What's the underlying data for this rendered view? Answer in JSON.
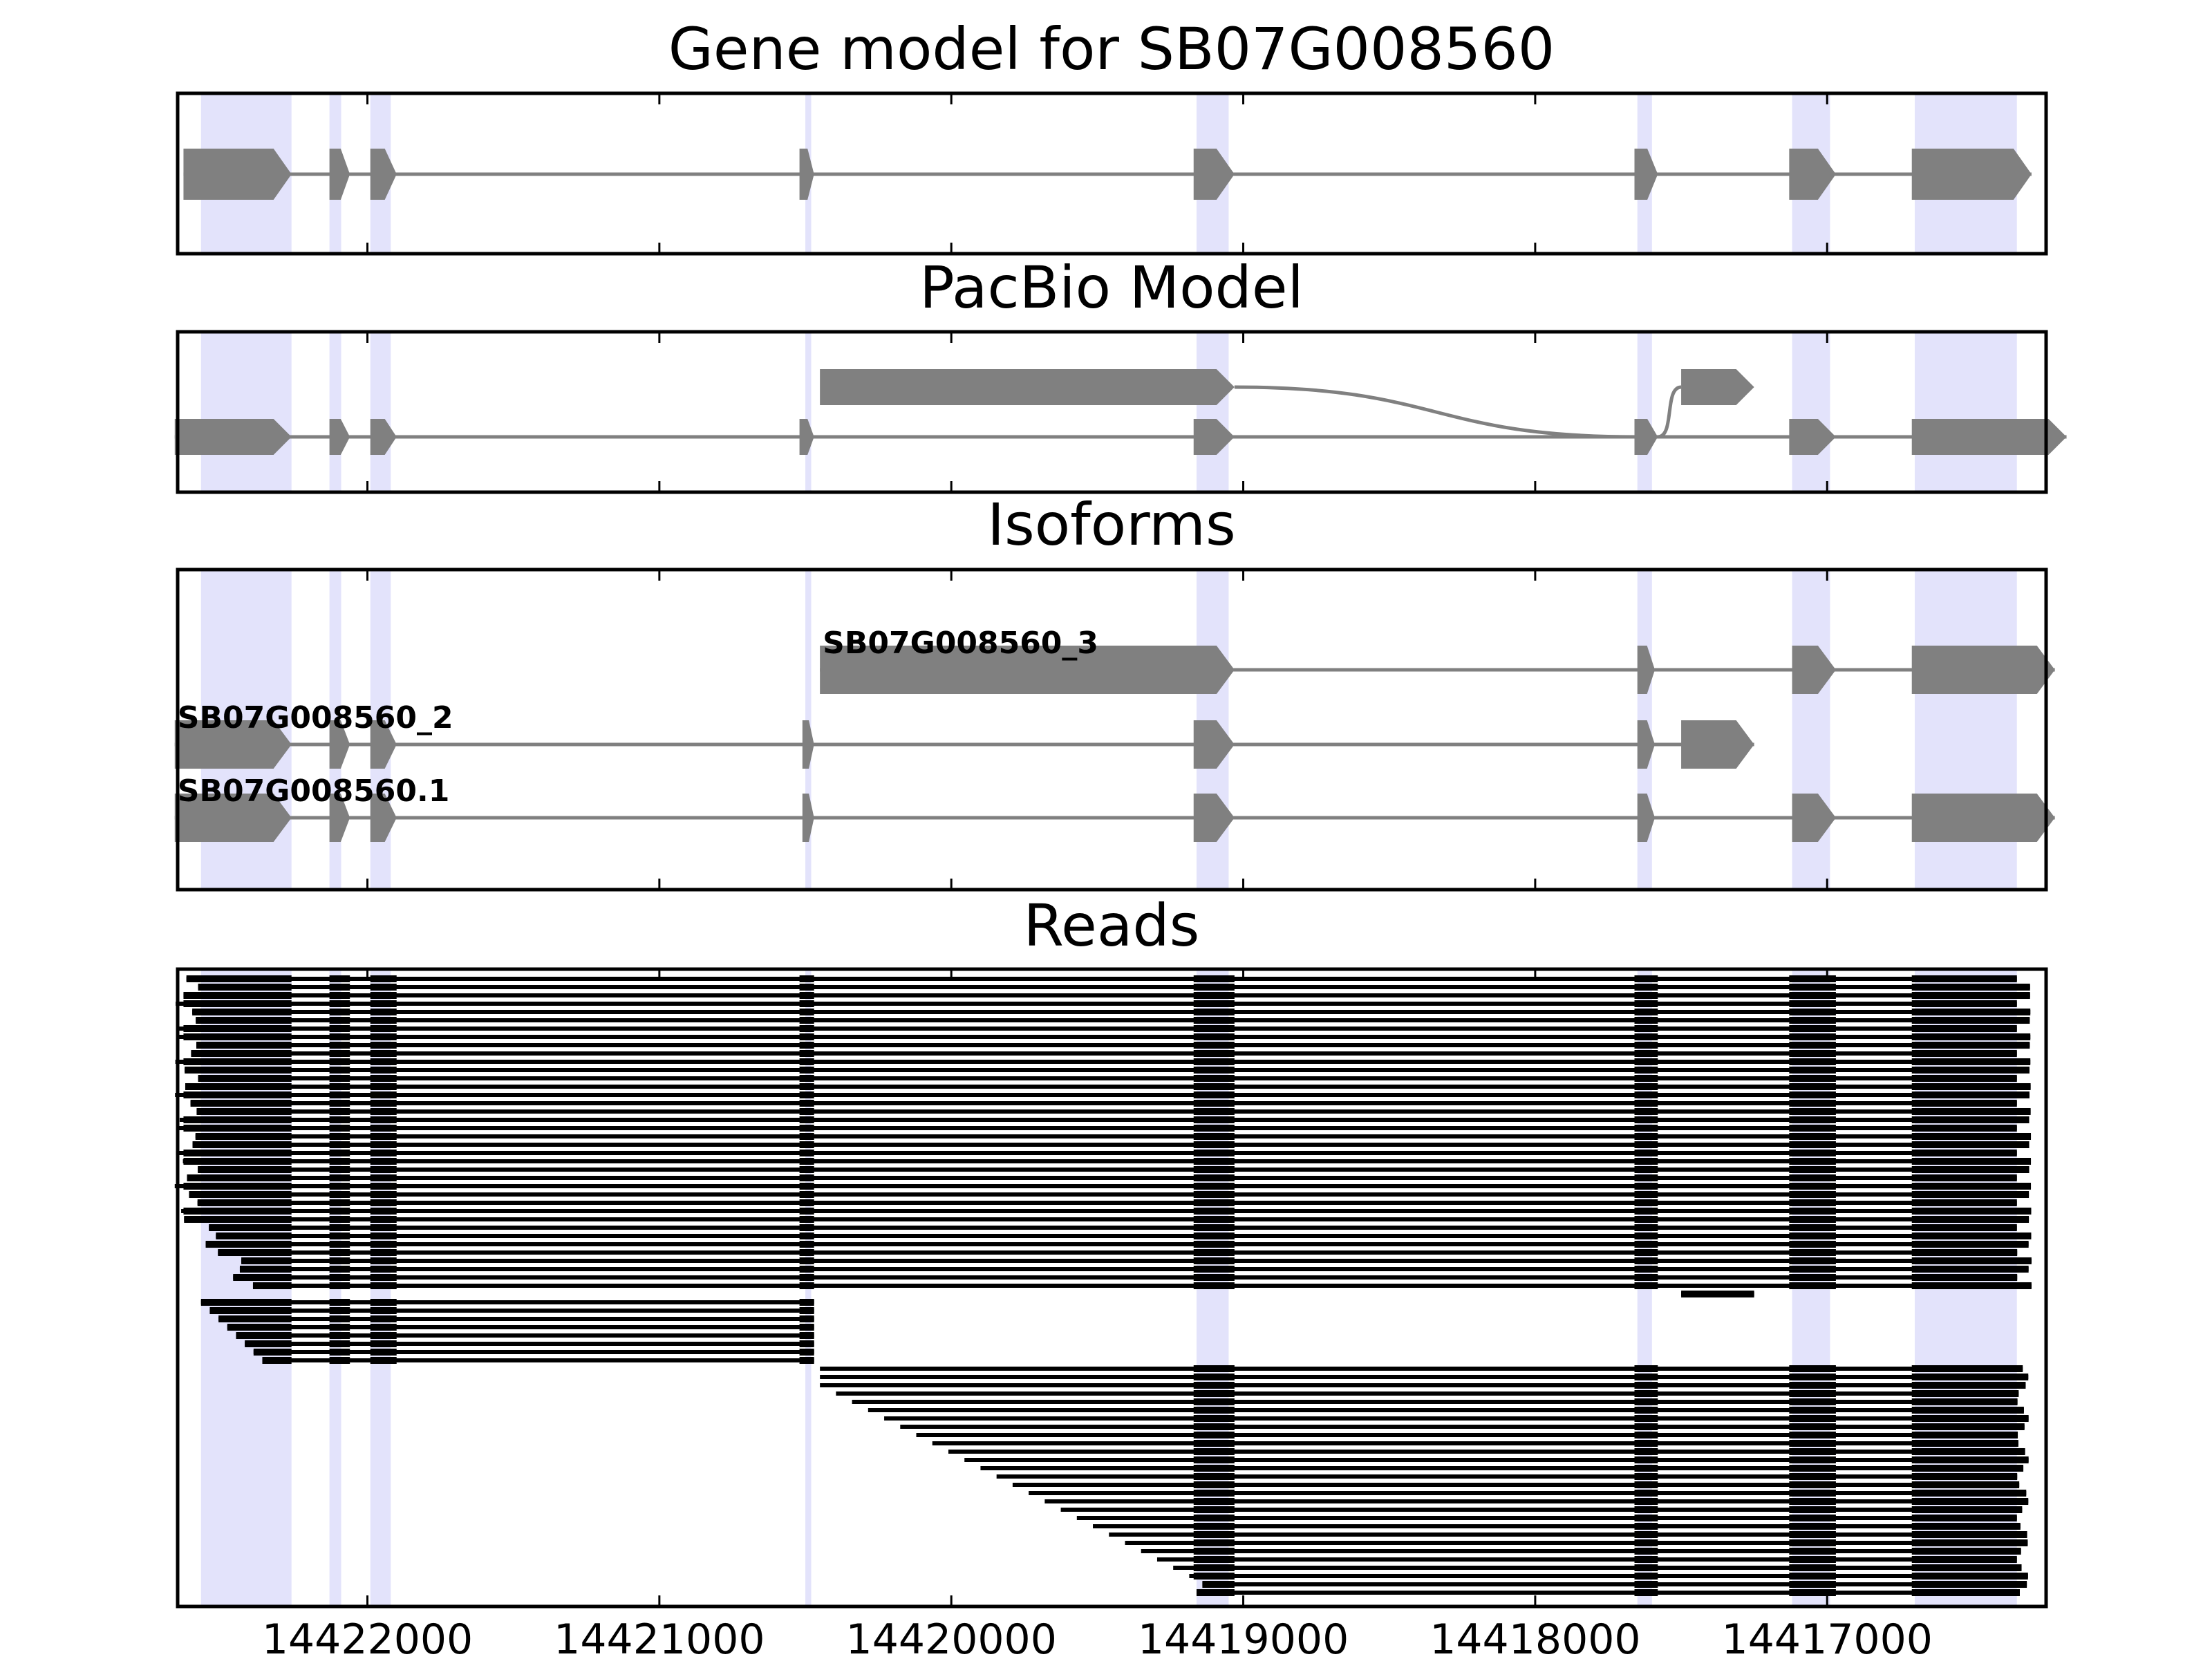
{
  "figure": {
    "panels": [
      {
        "id": "gene",
        "title": "Gene model for SB07G008560"
      },
      {
        "id": "pacbio",
        "title": "PacBio Model"
      },
      {
        "id": "isoforms",
        "title": "Isoforms"
      },
      {
        "id": "reads",
        "title": "Reads"
      }
    ]
  },
  "chart_data": {
    "type": "gene_model",
    "xlim": [
      14422650,
      14416250
    ],
    "x_direction": "reversed",
    "xticks": [
      14422000,
      14421000,
      14420000,
      14419000,
      14418000,
      14417000
    ],
    "xtick_labels": [
      "14422000",
      "14421000",
      "14420000",
      "14419000",
      "14418000",
      "14417000"
    ],
    "colors": {
      "exon": "#808080",
      "intron": "#808080",
      "highlight": "#e3e3fb",
      "read": "#000000",
      "frame": "#000000"
    },
    "highlight_regions": [
      [
        14422570,
        14422260
      ],
      [
        14422130,
        14422090
      ],
      [
        14421990,
        14421920
      ],
      [
        14420500,
        14420480
      ],
      [
        14419160,
        14419050
      ],
      [
        14417650,
        14417600
      ],
      [
        14417120,
        14416990
      ],
      [
        14416700,
        14416350
      ]
    ],
    "gene_model": {
      "exons": [
        [
          14422630,
          14422260
        ],
        [
          14422130,
          14422060
        ],
        [
          14421990,
          14421900
        ],
        [
          14420520,
          14420470
        ],
        [
          14419170,
          14419030
        ],
        [
          14417660,
          14417580
        ],
        [
          14417130,
          14416970
        ],
        [
          14416710,
          14416300
        ]
      ]
    },
    "pacbio_model": {
      "transcripts": [
        {
          "exons": [
            [
              14422660,
              14422260
            ],
            [
              14422130,
              14422060
            ],
            [
              14421990,
              14421900
            ],
            [
              14420520,
              14420470
            ],
            [
              14419170,
              14419030
            ],
            [
              14417660,
              14417580
            ],
            [
              14417130,
              14416970
            ],
            [
              14416710,
              14416180
            ]
          ]
        },
        {
          "exons": [
            [
              14420450,
              14419030
            ],
            [
              14417500,
              14417250
            ]
          ]
        }
      ]
    },
    "isoforms": [
      {
        "name": "SB07G008560_3",
        "exons": [
          [
            14420450,
            14419030
          ],
          [
            14417650,
            14417590
          ],
          [
            14417120,
            14416970
          ],
          [
            14416710,
            14416220
          ]
        ]
      },
      {
        "name": "SB07G008560_2",
        "exons": [
          [
            14422660,
            14422260
          ],
          [
            14422130,
            14422060
          ],
          [
            14421990,
            14421900
          ],
          [
            14420510,
            14420470
          ],
          [
            14419170,
            14419030
          ],
          [
            14417650,
            14417590
          ],
          [
            14417500,
            14417250
          ]
        ]
      },
      {
        "name": "SB07G008560.1",
        "exons": [
          [
            14422660,
            14422260
          ],
          [
            14422130,
            14422060
          ],
          [
            14421990,
            14421900
          ],
          [
            14420510,
            14420470
          ],
          [
            14419170,
            14419030
          ],
          [
            14417650,
            14417590
          ],
          [
            14417120,
            14416970
          ],
          [
            14416710,
            14416220
          ]
        ]
      }
    ],
    "reads": {
      "count": 75,
      "rows": [
        {
          "group": "full",
          "count": 38,
          "start": 14422600,
          "end": 14416300
        },
        {
          "group": "alt_end",
          "count": 1,
          "start": 14417500,
          "end": 14417250
        },
        {
          "group": "short_5prime",
          "count": 8,
          "start": 14422570,
          "end": 14420470
        },
        {
          "group": "from_exon5",
          "count": 28,
          "start": 14420450,
          "end": 14416320
        }
      ]
    }
  }
}
